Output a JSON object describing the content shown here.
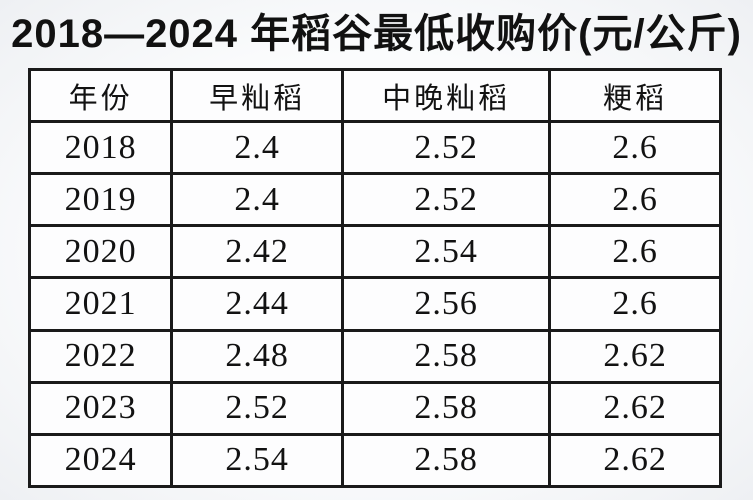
{
  "title": "2018—2024 年稻谷最低收购价(元/公斤)",
  "colors": {
    "text": "#111111",
    "table_border": "#1a1a1a",
    "cell_background": "#fdfdfe",
    "page_background": "#f2f3f6"
  },
  "table": {
    "columns": [
      "年份",
      "早籼稻",
      "中晚籼稻",
      "粳稻"
    ],
    "rows": [
      [
        "2018",
        "2.4",
        "2.52",
        "2.6"
      ],
      [
        "2019",
        "2.4",
        "2.52",
        "2.6"
      ],
      [
        "2020",
        "2.42",
        "2.54",
        "2.6"
      ],
      [
        "2021",
        "2.44",
        "2.56",
        "2.6"
      ],
      [
        "2022",
        "2.48",
        "2.58",
        "2.62"
      ],
      [
        "2023",
        "2.52",
        "2.58",
        "2.62"
      ],
      [
        "2024",
        "2.54",
        "2.58",
        "2.62"
      ]
    ]
  },
  "chart_data": {
    "type": "table",
    "title": "2018—2024 年稻谷最低收购价(元/公斤)",
    "unit": "元/公斤",
    "categories": [
      "2018",
      "2019",
      "2020",
      "2021",
      "2022",
      "2023",
      "2024"
    ],
    "series": [
      {
        "name": "早籼稻",
        "values": [
          2.4,
          2.4,
          2.42,
          2.44,
          2.48,
          2.52,
          2.54
        ]
      },
      {
        "name": "中晚籼稻",
        "values": [
          2.52,
          2.52,
          2.54,
          2.56,
          2.58,
          2.58,
          2.58
        ]
      },
      {
        "name": "粳稻",
        "values": [
          2.6,
          2.6,
          2.6,
          2.6,
          2.62,
          2.62,
          2.62
        ]
      }
    ]
  }
}
